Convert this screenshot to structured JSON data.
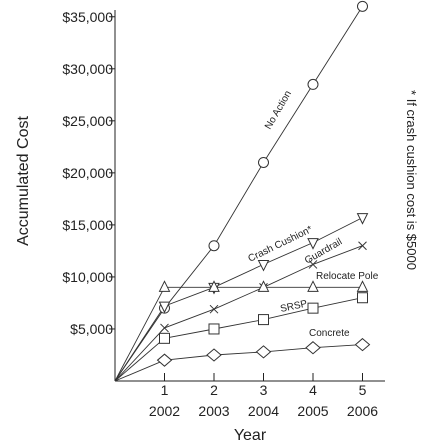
{
  "chart_data": {
    "type": "line",
    "xlabel": "Year",
    "ylabel": "Accumulated Cost",
    "x_ticks": [
      {
        "index": "1",
        "year": "2002"
      },
      {
        "index": "2",
        "year": "2003"
      },
      {
        "index": "3",
        "year": "2004"
      },
      {
        "index": "4",
        "year": "2005"
      },
      {
        "index": "5",
        "year": "2006"
      }
    ],
    "y_ticks": [
      "$5,000",
      "$10,000",
      "$15,000",
      "$20,000",
      "$25,000",
      "$30,000",
      "$35,000"
    ],
    "y_tick_values": [
      5000,
      10000,
      15000,
      20000,
      25000,
      30000,
      35000
    ],
    "xlim": [
      0,
      5
    ],
    "ylim": [
      0,
      37000
    ],
    "grid": false,
    "note": "* If crash cushion cost is $5000",
    "series": [
      {
        "name": "No Action",
        "marker": "circle",
        "values": [
          0,
          7000,
          13000,
          21000,
          28500,
          36000
        ]
      },
      {
        "name": "Crash Cushion*",
        "marker": "triangle-down",
        "values": [
          0,
          7200,
          9000,
          11200,
          13300,
          15700
        ]
      },
      {
        "name": "Guardrail",
        "marker": "x",
        "values": [
          0,
          5100,
          6900,
          9000,
          11200,
          13000
        ]
      },
      {
        "name": "Relocate Pole",
        "marker": "triangle-up",
        "values": [
          0,
          9000,
          9000,
          9000,
          9000,
          9000
        ]
      },
      {
        "name": "SRSP",
        "marker": "square",
        "values": [
          0,
          4100,
          5000,
          5900,
          7000,
          8000
        ]
      },
      {
        "name": "Concrete",
        "marker": "diamond",
        "values": [
          0,
          2000,
          2500,
          2800,
          3200,
          3500
        ]
      }
    ]
  }
}
